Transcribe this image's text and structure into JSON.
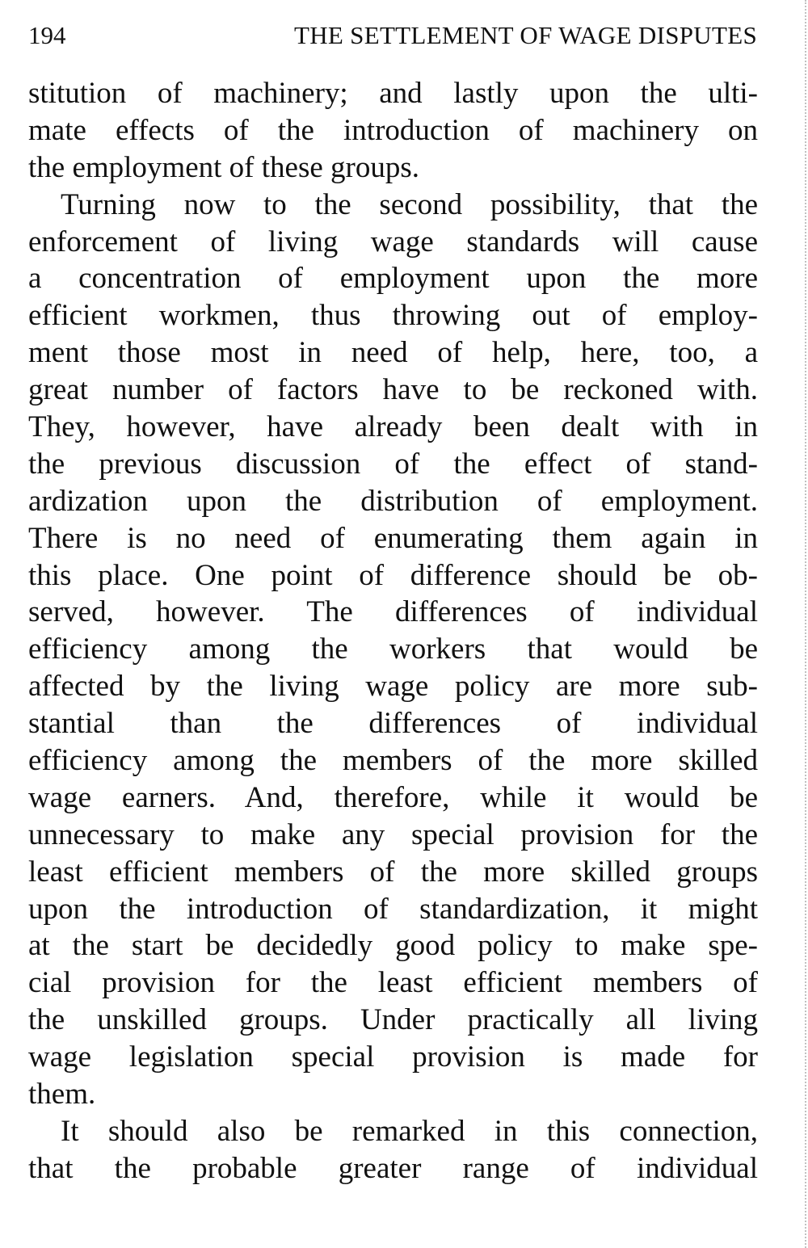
{
  "header": {
    "page_number": "194",
    "running_title": "THE SETTLEMENT OF WAGE DISPUTES"
  },
  "paragraphs": [
    {
      "indent": false,
      "lines": [
        "stitution of machinery; and lastly upon the ulti-",
        "mate effects of the introduction of machinery on",
        "the employment of these groups."
      ]
    },
    {
      "indent": true,
      "lines": [
        "Turning now to the second possibility, that the",
        "enforcement of living wage standards will cause",
        "a concentration of employment upon the more",
        "efficient workmen, thus throwing out of employ-",
        "ment those most in need of help, here, too, a",
        "great number of factors have to be reckoned with.",
        "They, however, have already been dealt with in",
        "the previous discussion of the effect of stand-",
        "ardization upon the distribution of employment.",
        "There is no need of enumerating them again in",
        "this place.  One point of difference should be ob-",
        "served, however.  The differences of individual",
        "efficiency among the workers that would be",
        "affected by the living wage policy are more sub-",
        "stantial than the differences of individual",
        "efficiency among the members of the more skilled",
        "wage earners.  And, therefore, while it would be",
        "unnecessary to make any special provision for the",
        "least efficient members of the more skilled groups",
        "upon the introduction of standardization, it might",
        "at the start be decidedly good policy to make spe-",
        "cial provision for the least efficient members of",
        "the unskilled groups.  Under practically all living",
        "wage legislation special provision is made for",
        "them."
      ]
    },
    {
      "indent": true,
      "continues": true,
      "lines": [
        "It should also be remarked in this connection,",
        "that the probable greater range of individual"
      ]
    }
  ]
}
